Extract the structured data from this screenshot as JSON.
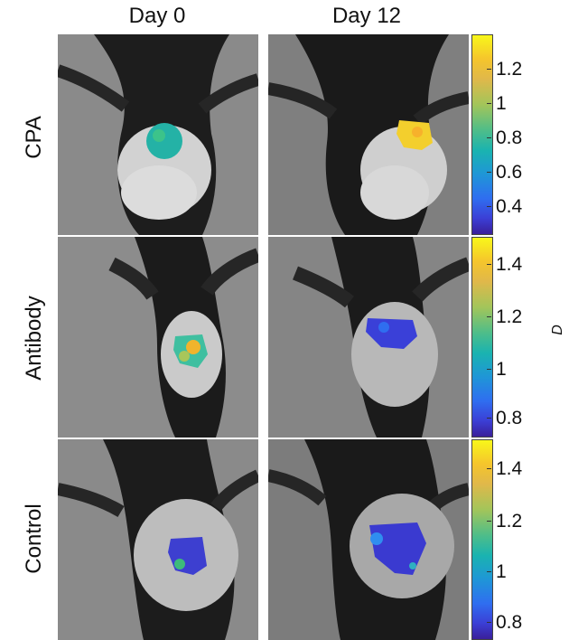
{
  "columns": [
    "Day 0",
    "Day 12"
  ],
  "rows": [
    "CPA",
    "Antibody",
    "Control"
  ],
  "colorbars": [
    {
      "ticks": [
        "1.2",
        "1",
        "0.8",
        "0.6",
        "0.4"
      ]
    },
    {
      "ticks": [
        "1.4",
        "1.2",
        "1",
        "0.8"
      ]
    },
    {
      "ticks": [
        "1.4",
        "1.2",
        "1",
        "0.8"
      ]
    }
  ],
  "side_label": "D",
  "colors": {
    "yellow": "#f8f71a",
    "orange": "#f5b62c",
    "teal": "#1ab3b0",
    "blue": "#2f6ef0",
    "purple": "#3a1f9a"
  }
}
